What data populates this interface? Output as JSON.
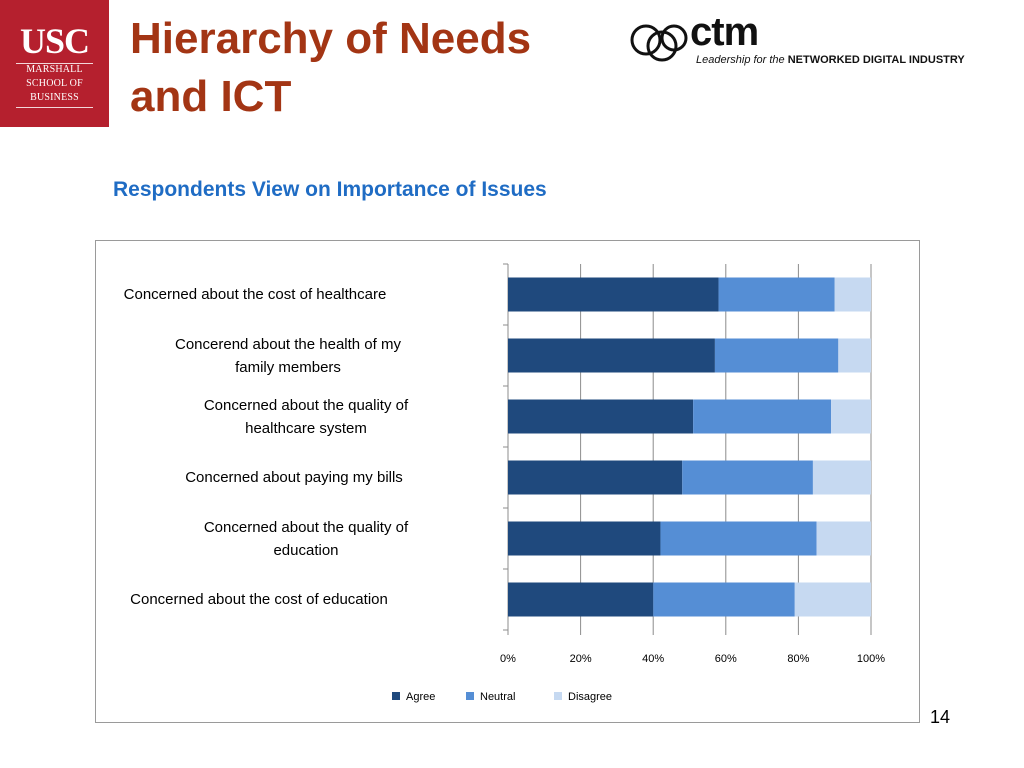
{
  "slide": {
    "title_line1": "Hierarchy of Needs",
    "title_line2": "and ICT",
    "subtitle": "Respondents View on Importance of Issues",
    "page_number": "14"
  },
  "logos": {
    "usc": {
      "main": "USC",
      "line1": "MARSHALL",
      "line2": "SCHOOL OF",
      "line3": "BUSINESS",
      "color": "#b5202e"
    },
    "ctm": {
      "word": "ctm",
      "tagline_italic": "Leadership for the",
      "tagline_bold": "NETWORKED DIGITAL INDUSTRY"
    }
  },
  "colors": {
    "title": "#a33514",
    "subtitle": "#1f6cc4"
  },
  "chart_data": {
    "type": "bar",
    "orientation": "horizontal",
    "stacked": "percent",
    "title": "",
    "xlabel": "",
    "ylabel": "",
    "categories": [
      "Concerned about the cost of healthcare",
      "Concerend about the health of my family members",
      "Concerned about the quality of healthcare system",
      "Concerned about paying my bills",
      "Concerned about the quality of education",
      "Concerned about the cost of education"
    ],
    "category_lines": [
      [
        "Concerned about the cost of healthcare"
      ],
      [
        "Concerend about the health of my",
        "family members"
      ],
      [
        "Concerned about the quality of",
        "healthcare system"
      ],
      [
        "Concerned about paying my bills"
      ],
      [
        "Concerned about the quality of",
        "education"
      ],
      [
        "Concerned about the cost of education"
      ]
    ],
    "series": [
      {
        "name": "Agree",
        "color": "#1f497d",
        "values": [
          58,
          57,
          51,
          48,
          42,
          40
        ]
      },
      {
        "name": "Neutral",
        "color": "#558ed5",
        "values": [
          32,
          34,
          38,
          36,
          43,
          39
        ]
      },
      {
        "name": "Disagree",
        "color": "#c6d9f1",
        "values": [
          10,
          9,
          11,
          16,
          15,
          21
        ]
      }
    ],
    "xlim": [
      0,
      100
    ],
    "xticks": [
      "0%",
      "20%",
      "40%",
      "60%",
      "80%",
      "100%"
    ],
    "grid": true,
    "legend_position": "bottom"
  }
}
